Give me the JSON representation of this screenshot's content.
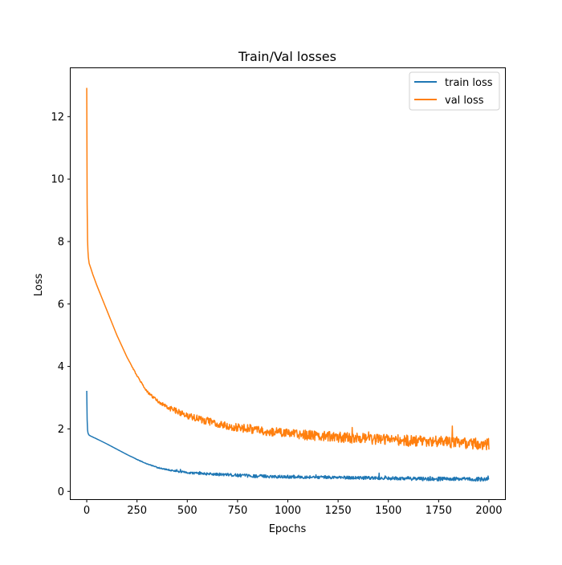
{
  "chart_data": {
    "type": "line",
    "title": "Train/Val losses",
    "xlabel": "Epochs",
    "ylabel": "Loss",
    "xlim": [
      -80,
      2080
    ],
    "ylim": [
      -0.25,
      13.55
    ],
    "xticks": [
      0,
      250,
      500,
      750,
      1000,
      1250,
      1500,
      1750,
      2000
    ],
    "yticks": [
      0,
      2,
      4,
      6,
      8,
      10,
      12
    ],
    "grid": false,
    "legend_position": "top-right",
    "series": [
      {
        "name": "train loss",
        "color": "#1f77b4",
        "x": [
          0,
          1,
          2,
          3,
          5,
          8,
          12,
          20,
          30,
          50,
          75,
          100,
          150,
          200,
          250,
          300,
          350,
          400,
          450,
          500,
          600,
          700,
          800,
          900,
          1000,
          1100,
          1200,
          1300,
          1400,
          1500,
          1600,
          1700,
          1800,
          1900,
          2000
        ],
        "values": [
          3.22,
          2.8,
          2.3,
          2.05,
          1.9,
          1.84,
          1.8,
          1.77,
          1.74,
          1.68,
          1.6,
          1.52,
          1.35,
          1.18,
          1.02,
          0.88,
          0.77,
          0.7,
          0.64,
          0.6,
          0.56,
          0.53,
          0.5,
          0.48,
          0.47,
          0.46,
          0.45,
          0.44,
          0.43,
          0.42,
          0.41,
          0.4,
          0.4,
          0.39,
          0.39
        ],
        "noise": [
          0,
          0,
          0,
          0,
          0,
          0,
          0,
          0,
          0,
          0,
          0,
          0,
          0,
          0,
          0.01,
          0.01,
          0.02,
          0.02,
          0.03,
          0.03,
          0.04,
          0.05,
          0.05,
          0.05,
          0.05,
          0.05,
          0.05,
          0.05,
          0.05,
          0.05,
          0.06,
          0.06,
          0.06,
          0.06,
          0.07
        ]
      },
      {
        "name": "val loss",
        "color": "#ff7f0e",
        "x": [
          0,
          1,
          2,
          3,
          5,
          8,
          12,
          20,
          30,
          50,
          75,
          100,
          150,
          200,
          250,
          300,
          350,
          400,
          450,
          500,
          600,
          700,
          800,
          900,
          1000,
          1100,
          1200,
          1300,
          1400,
          1500,
          1600,
          1700,
          1800,
          1900,
          2000
        ],
        "values": [
          12.92,
          11.0,
          9.2,
          8.3,
          7.8,
          7.5,
          7.3,
          7.15,
          6.95,
          6.6,
          6.2,
          5.8,
          5.0,
          4.3,
          3.7,
          3.2,
          2.9,
          2.7,
          2.55,
          2.42,
          2.25,
          2.1,
          2.0,
          1.92,
          1.85,
          1.8,
          1.76,
          1.72,
          1.68,
          1.65,
          1.62,
          1.6,
          1.57,
          1.55,
          1.52
        ],
        "noise": [
          0,
          0,
          0,
          0,
          0,
          0,
          0,
          0,
          0,
          0,
          0,
          0,
          0,
          0,
          0.02,
          0.04,
          0.06,
          0.08,
          0.1,
          0.1,
          0.12,
          0.13,
          0.14,
          0.15,
          0.15,
          0.16,
          0.16,
          0.17,
          0.17,
          0.18,
          0.18,
          0.18,
          0.19,
          0.19,
          0.2
        ]
      }
    ]
  }
}
